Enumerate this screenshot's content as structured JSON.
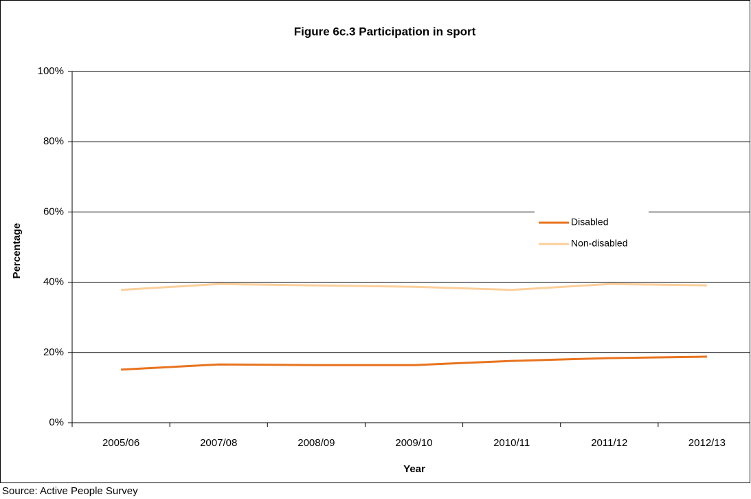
{
  "chart_data": {
    "type": "line",
    "title": "Figure 6c.3 Participation in sport",
    "x_label": "Year",
    "y_label": "Percentage",
    "source": "Source: Active People Survey",
    "categories": [
      "2005/06",
      "2007/08",
      "2008/09",
      "2009/10",
      "2010/11",
      "2011/12",
      "2012/13"
    ],
    "series": [
      {
        "name": "Disabled",
        "color": "#e8731e",
        "values": [
          15.1,
          16.6,
          16.4,
          16.4,
          17.6,
          18.4,
          18.8
        ]
      },
      {
        "name": "Non-disabled",
        "color": "#fbcf9b",
        "values": [
          37.8,
          39.5,
          39.1,
          38.7,
          37.8,
          39.5,
          39.1
        ]
      }
    ],
    "ylim": [
      0,
      100
    ],
    "yticks": [
      {
        "value": 0,
        "label": "0%"
      },
      {
        "value": 20,
        "label": "20%"
      },
      {
        "value": 40,
        "label": "40%"
      },
      {
        "value": 60,
        "label": "60%"
      },
      {
        "value": 80,
        "label": "80%"
      },
      {
        "value": 100,
        "label": "100%"
      }
    ],
    "grid": true
  }
}
